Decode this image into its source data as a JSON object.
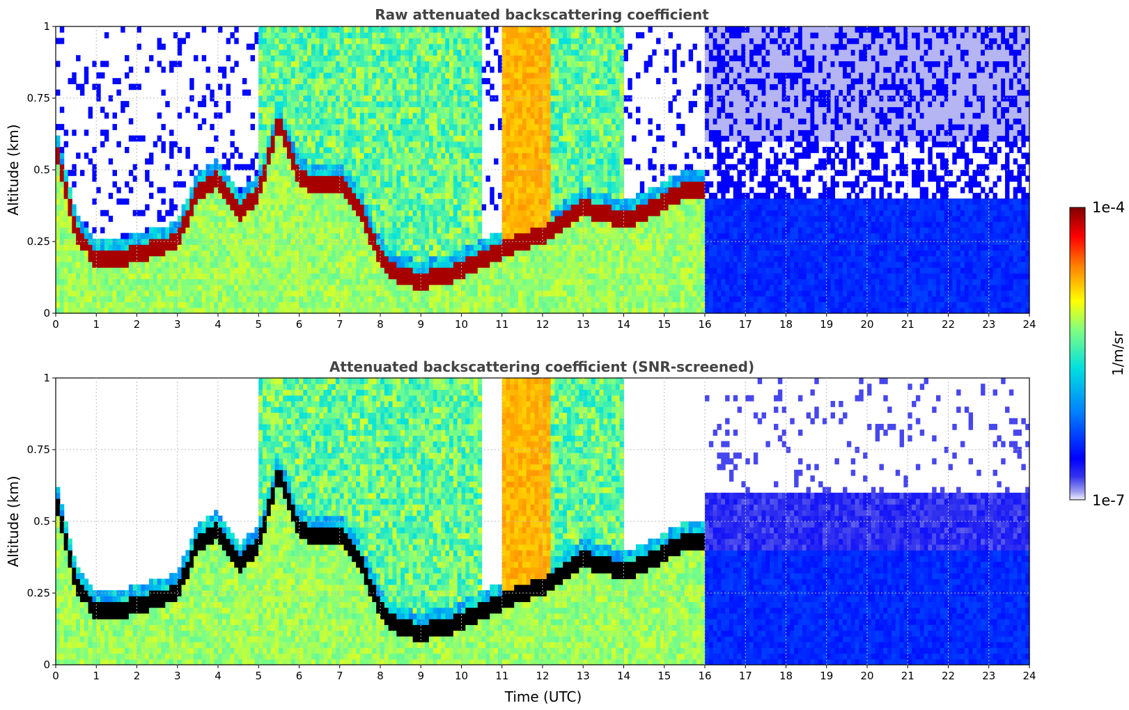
{
  "chart_data": [
    {
      "type": "heatmap",
      "title": "Raw attenuated backscattering coefficient",
      "xlabel": "",
      "ylabel": "Altitude (km)",
      "xlim": [
        0,
        24
      ],
      "ylim": [
        0,
        1
      ],
      "x_ticks": [
        "0",
        "1",
        "2",
        "3",
        "4",
        "5",
        "6",
        "7",
        "8",
        "9",
        "10",
        "11",
        "12",
        "13",
        "14",
        "15",
        "16",
        "17",
        "18",
        "19",
        "20",
        "21",
        "22",
        "23",
        "24"
      ],
      "y_ticks": [
        "0",
        "0.25",
        "0.5",
        "0.75",
        "1"
      ],
      "grid": true,
      "cloud_top_km": [
        [
          0,
          0.6
        ],
        [
          0.5,
          0.32
        ],
        [
          1,
          0.22
        ],
        [
          1.5,
          0.22
        ],
        [
          2,
          0.24
        ],
        [
          2.5,
          0.26
        ],
        [
          3,
          0.28
        ],
        [
          3.5,
          0.45
        ],
        [
          4,
          0.5
        ],
        [
          4.5,
          0.38
        ],
        [
          5,
          0.45
        ],
        [
          5.5,
          0.7
        ],
        [
          6,
          0.5
        ],
        [
          6.5,
          0.48
        ],
        [
          7,
          0.48
        ],
        [
          7.5,
          0.4
        ],
        [
          8,
          0.22
        ],
        [
          8.5,
          0.16
        ],
        [
          9,
          0.14
        ],
        [
          9.5,
          0.16
        ],
        [
          10,
          0.18
        ],
        [
          10.5,
          0.22
        ],
        [
          11,
          0.25
        ],
        [
          11.5,
          0.28
        ],
        [
          12,
          0.3
        ],
        [
          12.5,
          0.35
        ],
        [
          13,
          0.4
        ],
        [
          13.5,
          0.38
        ],
        [
          14,
          0.35
        ],
        [
          14.5,
          0.38
        ],
        [
          15,
          0.42
        ],
        [
          15.5,
          0.46
        ],
        [
          16,
          0.45
        ]
      ],
      "colorbar": {
        "min": "1e-7",
        "max": "1e-4",
        "label": "1/m/sr",
        "scale": "log",
        "colormap": "jet"
      }
    },
    {
      "type": "heatmap",
      "title": "Attenuated backscattering coefficient (SNR-screened)",
      "xlabel": "Time (UTC)",
      "ylabel": "Altitude (km)",
      "xlim": [
        0,
        24
      ],
      "ylim": [
        0,
        1
      ],
      "x_ticks": [
        "0",
        "1",
        "2",
        "3",
        "4",
        "5",
        "6",
        "7",
        "8",
        "9",
        "10",
        "11",
        "12",
        "13",
        "14",
        "15",
        "16",
        "17",
        "18",
        "19",
        "20",
        "21",
        "22",
        "23",
        "24"
      ],
      "y_ticks": [
        "0",
        "0.25",
        "0.5",
        "0.75",
        "1"
      ],
      "grid": true,
      "note_saturated_color": "#000000"
    }
  ],
  "colorbar": {
    "max_label": "1e-4",
    "min_label": "1e-7",
    "label": "1/m/sr"
  }
}
